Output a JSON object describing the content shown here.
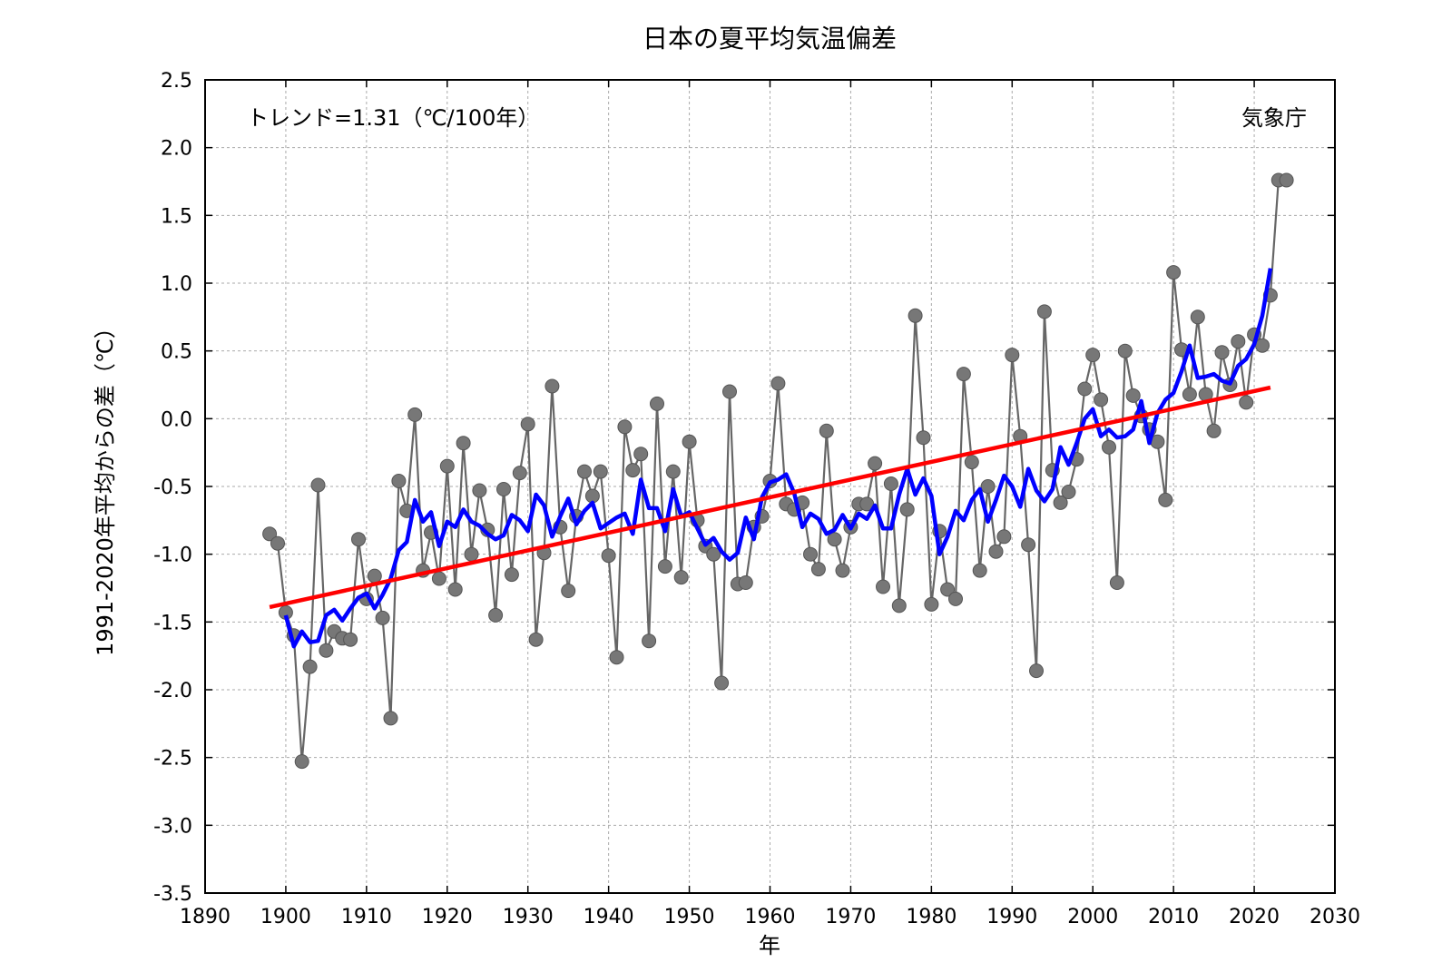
{
  "chart_data": {
    "type": "line",
    "title": "日本の夏平均気温偏差",
    "xlabel": "年",
    "ylabel": "1991-2020年平均からの差（℃）",
    "annotations": {
      "trend": "トレンド=1.31（℃/100年）",
      "source": "気象庁"
    },
    "xlim": [
      1890,
      2030
    ],
    "ylim": [
      -3.5,
      2.5
    ],
    "x_ticks": [
      "1890",
      "1900",
      "1910",
      "1920",
      "1930",
      "1940",
      "1950",
      "1960",
      "1970",
      "1980",
      "1990",
      "2000",
      "2010",
      "2020",
      "2030"
    ],
    "y_ticks": [
      "2.5",
      "2.0",
      "1.5",
      "1.0",
      "0.5",
      "0.0",
      "-0.5",
      "-1.0",
      "-1.5",
      "-2.0",
      "-2.5",
      "-3.0",
      "-3.5"
    ],
    "grid": true,
    "colors": {
      "annual": "#666666",
      "marker": "#777777",
      "moving_average": "#0000ff",
      "trend": "#ff0000"
    },
    "series": [
      {
        "style": "line+markers",
        "x": [
          1898,
          1899,
          1900,
          1901,
          1902,
          1903,
          1904,
          1905,
          1906,
          1907,
          1908,
          1909,
          1910,
          1911,
          1912,
          1913,
          1914,
          1915,
          1916,
          1917,
          1918,
          1919,
          1920,
          1921,
          1922,
          1923,
          1924,
          1925,
          1926,
          1927,
          1928,
          1929,
          1930,
          1931,
          1932,
          1933,
          1934,
          1935,
          1936,
          1937,
          1938,
          1939,
          1940,
          1941,
          1942,
          1943,
          1944,
          1945,
          1946,
          1947,
          1948,
          1949,
          1950,
          1951,
          1952,
          1953,
          1954,
          1955,
          1956,
          1957,
          1958,
          1959,
          1960,
          1961,
          1962,
          1963,
          1964,
          1965,
          1966,
          1967,
          1968,
          1969,
          1970,
          1971,
          1972,
          1973,
          1974,
          1975,
          1976,
          1977,
          1978,
          1979,
          1980,
          1981,
          1982,
          1983,
          1984,
          1985,
          1986,
          1987,
          1988,
          1989,
          1990,
          1991,
          1992,
          1993,
          1994,
          1995,
          1996,
          1997,
          1998,
          1999,
          2000,
          2001,
          2002,
          2003,
          2004,
          2005,
          2006,
          2007,
          2008,
          2009,
          2010,
          2011,
          2012,
          2013,
          2014,
          2015,
          2016,
          2017,
          2018,
          2019,
          2020,
          2021,
          2022,
          2023,
          2024
        ],
        "values": [
          -0.85,
          -0.92,
          -1.43,
          -1.6,
          -2.53,
          -1.83,
          -0.49,
          -1.71,
          -1.57,
          -1.62,
          -1.63,
          -0.89,
          -1.33,
          -1.16,
          -1.47,
          -2.21,
          -0.46,
          -0.68,
          0.03,
          -1.12,
          -0.84,
          -1.18,
          -0.35,
          -1.26,
          -0.18,
          -1.0,
          -0.53,
          -0.82,
          -1.45,
          -0.52,
          -1.15,
          -0.4,
          -0.04,
          -1.63,
          -0.99,
          0.24,
          -0.8,
          -1.27,
          -0.72,
          -0.39,
          -0.57,
          -0.39,
          -1.01,
          -1.76,
          -0.06,
          -0.38,
          -0.26,
          -1.64,
          0.11,
          -1.09,
          -0.39,
          -1.17,
          -0.17,
          -0.75,
          -0.94,
          -1.0,
          -1.95,
          0.2,
          -1.22,
          -1.21,
          -0.8,
          -0.72,
          -0.46,
          0.26,
          -0.63,
          -0.67,
          -0.62,
          -1.0,
          -1.11,
          -0.09,
          -0.89,
          -1.12,
          -0.8,
          -0.63,
          -0.63,
          -0.33,
          -1.24,
          -0.48,
          -1.38,
          -0.67,
          0.76,
          -0.14,
          -1.37,
          -0.83,
          -1.26,
          -1.33,
          0.33,
          -0.32,
          -1.12,
          -0.5,
          -0.98,
          -0.87,
          0.47,
          -0.13,
          -0.93,
          -1.86,
          0.79,
          -0.38,
          -0.62,
          -0.54,
          -0.3,
          0.22,
          0.47,
          0.14,
          -0.21,
          -1.21,
          0.5,
          0.17,
          0.02,
          -0.08,
          -0.17,
          -0.6,
          1.08,
          0.51,
          0.18,
          0.75,
          0.18,
          -0.09,
          0.49,
          0.25,
          0.57,
          0.12,
          0.62,
          0.54,
          0.91,
          1.76,
          1.76
        ]
      },
      {
        "style": "line",
        "x": [
          1900,
          1901,
          1902,
          1903,
          1904,
          1905,
          1906,
          1907,
          1908,
          1909,
          1910,
          1911,
          1912,
          1913,
          1914,
          1915,
          1916,
          1917,
          1918,
          1919,
          1920,
          1921,
          1922,
          1923,
          1924,
          1925,
          1926,
          1927,
          1928,
          1929,
          1930,
          1931,
          1932,
          1933,
          1934,
          1935,
          1936,
          1937,
          1938,
          1939,
          1940,
          1941,
          1942,
          1943,
          1944,
          1945,
          1946,
          1947,
          1948,
          1949,
          1950,
          1951,
          1952,
          1953,
          1954,
          1955,
          1956,
          1957,
          1958,
          1959,
          1960,
          1961,
          1962,
          1963,
          1964,
          1965,
          1966,
          1967,
          1968,
          1969,
          1970,
          1971,
          1972,
          1973,
          1974,
          1975,
          1976,
          1977,
          1978,
          1979,
          1980,
          1981,
          1982,
          1983,
          1984,
          1985,
          1986,
          1987,
          1988,
          1989,
          1990,
          1991,
          1992,
          1993,
          1994,
          1995,
          1996,
          1997,
          1998,
          1999,
          2000,
          2001,
          2002,
          2003,
          2004,
          2005,
          2006,
          2007,
          2008,
          2009,
          2010,
          2011,
          2012,
          2013,
          2014,
          2015,
          2016,
          2017,
          2018,
          2019,
          2020,
          2021,
          2022
        ],
        "values": [
          -1.45,
          -1.68,
          -1.57,
          -1.65,
          -1.64,
          -1.45,
          -1.41,
          -1.49,
          -1.4,
          -1.32,
          -1.29,
          -1.4,
          -1.3,
          -1.18,
          -0.97,
          -0.91,
          -0.6,
          -0.76,
          -0.69,
          -0.94,
          -0.76,
          -0.8,
          -0.67,
          -0.76,
          -0.79,
          -0.85,
          -0.89,
          -0.86,
          -0.71,
          -0.75,
          -0.83,
          -0.56,
          -0.64,
          -0.87,
          -0.72,
          -0.59,
          -0.78,
          -0.68,
          -0.62,
          -0.81,
          -0.77,
          -0.73,
          -0.7,
          -0.85,
          -0.45,
          -0.66,
          -0.66,
          -0.83,
          -0.52,
          -0.72,
          -0.69,
          -0.81,
          -0.93,
          -0.88,
          -0.98,
          -1.04,
          -0.99,
          -0.73,
          -0.89,
          -0.58,
          -0.47,
          -0.45,
          -0.41,
          -0.55,
          -0.8,
          -0.7,
          -0.74,
          -0.85,
          -0.82,
          -0.71,
          -0.81,
          -0.7,
          -0.74,
          -0.64,
          -0.81,
          -0.81,
          -0.56,
          -0.37,
          -0.56,
          -0.44,
          -0.57,
          -1.0,
          -0.87,
          -0.68,
          -0.75,
          -0.6,
          -0.52,
          -0.76,
          -0.6,
          -0.42,
          -0.5,
          -0.65,
          -0.37,
          -0.53,
          -0.61,
          -0.52,
          -0.21,
          -0.34,
          -0.18,
          0.0,
          0.07,
          -0.13,
          -0.08,
          -0.14,
          -0.13,
          -0.08,
          0.13,
          -0.18,
          0.04,
          0.14,
          0.19,
          0.35,
          0.54,
          0.3,
          0.31,
          0.33,
          0.28,
          0.26,
          0.39,
          0.44,
          0.55,
          0.76,
          1.11
        ]
      },
      {
        "style": "line",
        "x": [
          1898,
          2022
        ],
        "values": [
          -1.39,
          0.23
        ]
      }
    ]
  }
}
